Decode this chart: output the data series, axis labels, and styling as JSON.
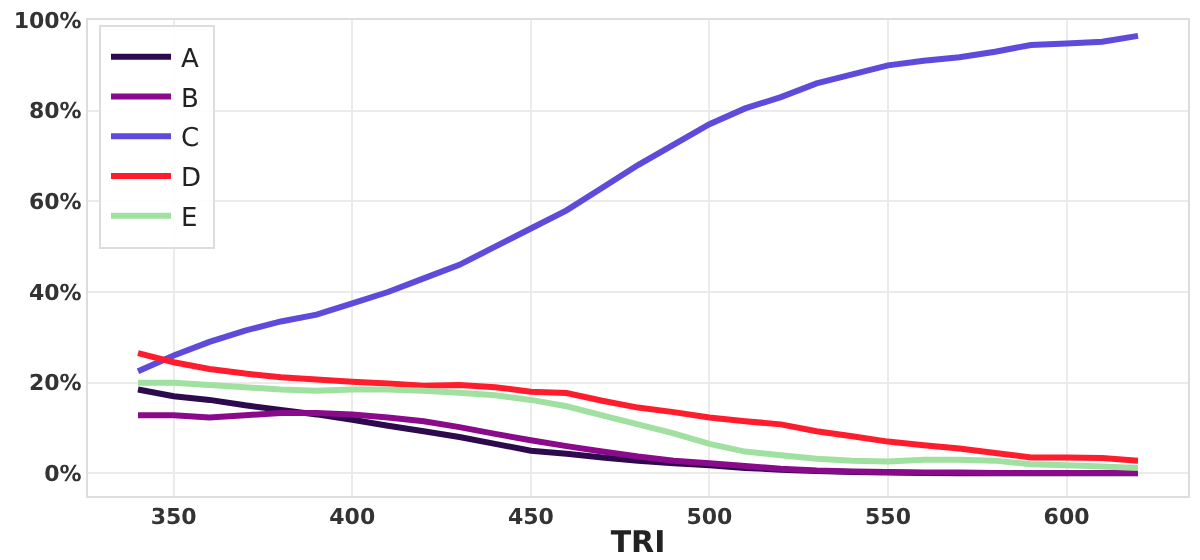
{
  "chart_data": {
    "type": "line",
    "xlabel": "TRI",
    "x": [
      340,
      350,
      360,
      370,
      380,
      390,
      400,
      410,
      420,
      430,
      440,
      450,
      460,
      470,
      480,
      490,
      500,
      510,
      520,
      530,
      540,
      550,
      560,
      570,
      580,
      590,
      600,
      610,
      620
    ],
    "series": [
      {
        "name": "A",
        "color": "#2d0a4e",
        "values": [
          18.5,
          17,
          16.2,
          15,
          14,
          13,
          11.8,
          10.5,
          9.3,
          8,
          6.5,
          5,
          4.3,
          3.5,
          2.8,
          2.2,
          1.8,
          1.2,
          0.8,
          0.5,
          0.3,
          0.2,
          0.1,
          0,
          0,
          0,
          0,
          0,
          0
        ]
      },
      {
        "name": "B",
        "color": "#8b0a8b",
        "values": [
          12.8,
          12.8,
          12.3,
          12.8,
          13.3,
          13.3,
          13,
          12.3,
          11.5,
          10.2,
          8.7,
          7.3,
          6,
          4.8,
          3.7,
          2.8,
          2.2,
          1.6,
          1,
          0.6,
          0.4,
          0.3,
          0.2,
          0.2,
          0.1,
          0.1,
          0.1,
          0.1,
          0.1
        ]
      },
      {
        "name": "C",
        "color": "#5f4bdb",
        "values": [
          22.5,
          26,
          29,
          31.5,
          33.5,
          35,
          37.5,
          40,
          43,
          46,
          50,
          54,
          58,
          63,
          68,
          72.5,
          77,
          80.5,
          83,
          86,
          88,
          90,
          91,
          91.8,
          93,
          94.5,
          94.8,
          95.2,
          96.5
        ]
      },
      {
        "name": "D",
        "color": "#ff1c2c",
        "values": [
          26.5,
          24.5,
          23,
          22,
          21.2,
          20.7,
          20.2,
          19.8,
          19.3,
          19.5,
          19,
          18,
          17.7,
          16,
          14.5,
          13.5,
          12.3,
          11.5,
          10.8,
          9.3,
          8.2,
          7,
          6.2,
          5.5,
          4.5,
          3.5,
          3.5,
          3.4,
          2.8
        ]
      },
      {
        "name": "E",
        "color": "#a0e0a0",
        "values": [
          20,
          20,
          19.5,
          19,
          18.5,
          18.2,
          18.5,
          18.5,
          18.2,
          17.8,
          17.2,
          16.2,
          14.8,
          12.8,
          10.8,
          8.8,
          6.5,
          4.8,
          4,
          3.2,
          2.8,
          2.6,
          3,
          3,
          2.8,
          2,
          1.8,
          1.5,
          1.2
        ]
      }
    ],
    "xlim": [
      326,
      634
    ],
    "xticks": [
      350,
      400,
      450,
      500,
      550,
      600
    ],
    "ylim": [
      -5,
      100
    ],
    "yticks": [
      {
        "value": 0,
        "label": "0%"
      },
      {
        "value": 20,
        "label": "20%"
      },
      {
        "value": 40,
        "label": "40%"
      },
      {
        "value": 60,
        "label": "60%"
      },
      {
        "value": 80,
        "label": "80%"
      },
      {
        "value": 100,
        "label": "100%"
      }
    ],
    "grid": true,
    "legend": "top left",
    "line_style": "solid",
    "marker": "none"
  }
}
